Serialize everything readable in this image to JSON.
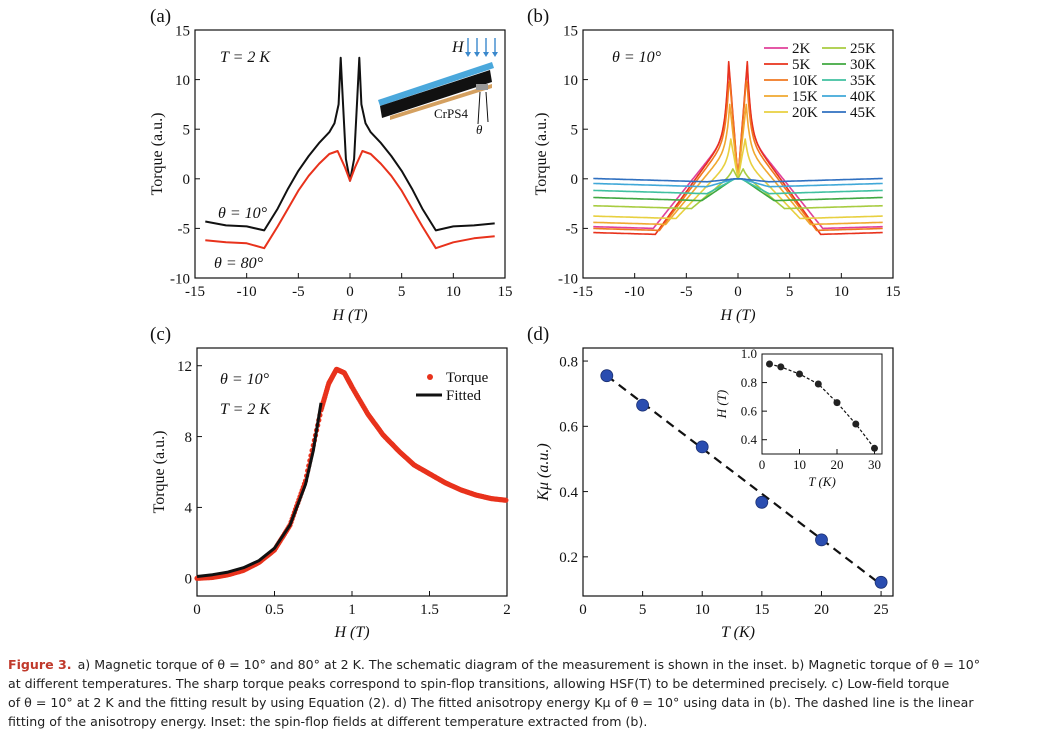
{
  "chart_data": [
    {
      "panel": "(a)",
      "type": "line",
      "xlabel": "H (T)",
      "ylabel": "Torque (a.u.)",
      "xlim": [
        -15,
        15
      ],
      "ylim": [
        -10,
        15
      ],
      "xticks": [
        "-15",
        "-10",
        "-5",
        "0",
        "5",
        "10",
        "15"
      ],
      "yticks": [
        "-10",
        "-5",
        "0",
        "5",
        "10",
        "15"
      ],
      "annotations": [
        "T = 2 K",
        "θ = 10°",
        "θ = 80°"
      ],
      "inset_labels": {
        "field": "H",
        "sample": "CrPS4",
        "angle": "θ"
      },
      "series": [
        {
          "name": "θ = 10°",
          "color": "#111111",
          "x": [
            -14,
            -12,
            -10,
            -8.3,
            -7,
            -6,
            -5,
            -4,
            -3,
            -2,
            -1.5,
            -1.1,
            -0.9,
            -0.7,
            -0.4,
            0,
            0.4,
            0.7,
            0.9,
            1.1,
            1.5,
            2,
            3,
            4,
            5,
            6,
            7,
            8.3,
            10,
            12,
            14
          ],
          "y": [
            -4.3,
            -4.7,
            -4.8,
            -5.2,
            -3.0,
            -1.0,
            0.8,
            2.3,
            3.6,
            4.7,
            5.6,
            7.5,
            12.2,
            8.0,
            2.0,
            -0.2,
            2.0,
            8.0,
            12.2,
            7.5,
            5.6,
            4.7,
            3.6,
            2.3,
            0.8,
            -1.0,
            -3.0,
            -5.2,
            -4.8,
            -4.7,
            -4.5
          ]
        },
        {
          "name": "θ = 80°",
          "color": "#e8321c",
          "x": [
            -14,
            -12,
            -10,
            -8.3,
            -7,
            -6,
            -5,
            -4,
            -3,
            -2,
            -1.2,
            -0.5,
            0,
            0.5,
            1.2,
            2,
            3,
            4,
            5,
            6,
            7,
            8.3,
            10,
            12,
            14
          ],
          "y": [
            -6.2,
            -6.4,
            -6.5,
            -7.0,
            -4.8,
            -3.0,
            -1.2,
            0.3,
            1.5,
            2.5,
            2.8,
            1.2,
            -0.2,
            1.2,
            2.8,
            2.5,
            1.5,
            0.3,
            -1.2,
            -3.0,
            -4.8,
            -7.0,
            -6.4,
            -6.0,
            -5.8
          ]
        }
      ]
    },
    {
      "panel": "(b)",
      "type": "line",
      "xlabel": "H (T)",
      "ylabel": "Torque (a.u.)",
      "xlim": [
        -15,
        15
      ],
      "ylim": [
        -10,
        15
      ],
      "xticks": [
        "-15",
        "-10",
        "-5",
        "0",
        "5",
        "10",
        "15"
      ],
      "yticks": [
        "-10",
        "-5",
        "0",
        "5",
        "10",
        "15"
      ],
      "annotations": [
        "θ = 10°"
      ],
      "legend_position": "top-right",
      "series": [
        {
          "name": "2K",
          "color": "#e0409a",
          "peak": 11.5,
          "peak_h": 0.9,
          "shoulder": 4.5,
          "sat": -5.0,
          "hsf": 8.2
        },
        {
          "name": "5K",
          "color": "#e8321c",
          "peak": 11.8,
          "peak_h": 0.9,
          "shoulder": 4.6,
          "sat": -5.6,
          "hsf": 8.0
        },
        {
          "name": "10K",
          "color": "#f07820",
          "peak": 10.5,
          "peak_h": 0.85,
          "shoulder": 4.2,
          "sat": -5.2,
          "hsf": 7.6
        },
        {
          "name": "15K",
          "color": "#f0a830",
          "peak": 7.5,
          "peak_h": 0.8,
          "shoulder": 3.2,
          "sat": -4.6,
          "hsf": 7.0
        },
        {
          "name": "20K",
          "color": "#e8d040",
          "peak": 4.0,
          "peak_h": 0.7,
          "shoulder": 1.8,
          "sat": -4.0,
          "hsf": 6.0
        },
        {
          "name": "25K",
          "color": "#a8cc40",
          "peak": 1.0,
          "peak_h": 0.5,
          "shoulder": 0.5,
          "sat": -3.0,
          "hsf": 4.5
        },
        {
          "name": "30K",
          "color": "#40a840",
          "peak": 0.0,
          "peak_h": 0.4,
          "shoulder": 0.0,
          "sat": -2.2,
          "hsf": 3.5
        },
        {
          "name": "35K",
          "color": "#40c0a0",
          "peak": 0.0,
          "peak_h": 0.3,
          "shoulder": 0.0,
          "sat": -1.5,
          "hsf": 3.0
        },
        {
          "name": "40K",
          "color": "#40a8d8",
          "peak": 0.0,
          "peak_h": 0.3,
          "shoulder": 0.0,
          "sat": -0.8,
          "hsf": 3.0
        },
        {
          "name": "45K",
          "color": "#3070c0",
          "peak": 0.0,
          "peak_h": 0.3,
          "shoulder": 0.0,
          "sat": -0.3,
          "hsf": 3.0
        }
      ]
    },
    {
      "panel": "(c)",
      "type": "scatter",
      "xlabel": "H (T)",
      "ylabel": "Torque (a.u.)",
      "xlim": [
        0,
        2
      ],
      "ylim": [
        -1,
        13
      ],
      "xticks": [
        "0",
        "0.5",
        "1",
        "1.5",
        "2"
      ],
      "yticks": [
        "0",
        "4",
        "8",
        "12"
      ],
      "annotations": [
        "θ = 10°",
        "T = 2 K"
      ],
      "legend_position": "top-right",
      "series": [
        {
          "name": "Torque",
          "color": "#e8321c",
          "x": [
            0,
            0.1,
            0.2,
            0.3,
            0.4,
            0.5,
            0.6,
            0.7,
            0.8,
            0.85,
            0.9,
            0.95,
            1.0,
            1.1,
            1.2,
            1.3,
            1.4,
            1.5,
            1.6,
            1.7,
            1.8,
            1.9,
            2.0
          ],
          "y": [
            0.0,
            0.05,
            0.2,
            0.45,
            0.9,
            1.6,
            3.0,
            5.5,
            9.5,
            11.0,
            11.8,
            11.6,
            10.8,
            9.3,
            8.1,
            7.2,
            6.4,
            5.9,
            5.4,
            5.0,
            4.7,
            4.5,
            4.4
          ]
        },
        {
          "name": "Fitted",
          "color": "#111111",
          "x": [
            0,
            0.1,
            0.2,
            0.3,
            0.4,
            0.5,
            0.6,
            0.7,
            0.75,
            0.8
          ],
          "y": [
            0.1,
            0.2,
            0.35,
            0.6,
            1.0,
            1.7,
            3.0,
            5.3,
            7.2,
            9.9
          ]
        }
      ]
    },
    {
      "panel": "(d)",
      "type": "scatter",
      "xlabel": "T (K)",
      "ylabel": "Kμ (a.u.)",
      "xlim": [
        0,
        26
      ],
      "ylim": [
        0.08,
        0.84
      ],
      "xticks": [
        "0",
        "5",
        "10",
        "15",
        "20",
        "25"
      ],
      "yticks": [
        "0.2",
        "0.4",
        "0.6",
        "0.8"
      ],
      "series": [
        {
          "name": "Kμ",
          "color": "#2a4db0",
          "x": [
            2,
            5,
            10,
            15,
            20,
            25
          ],
          "y": [
            0.755,
            0.665,
            0.537,
            0.367,
            0.252,
            0.122
          ]
        },
        {
          "name": "Linear fit",
          "color": "#111111",
          "x": [
            2,
            25
          ],
          "y": [
            0.755,
            0.115
          ]
        }
      ],
      "inset": {
        "type": "line",
        "xlabel": "T (K)",
        "ylabel": "H (T)",
        "xlim": [
          0,
          32
        ],
        "ylim": [
          0.3,
          1.0
        ],
        "xticks": [
          "0",
          "10",
          "20",
          "30"
        ],
        "yticks": [
          "0.4",
          "0.6",
          "0.8",
          "1.0"
        ],
        "series": [
          {
            "name": "HSF",
            "color": "#111111",
            "x": [
              2,
              5,
              10,
              15,
              20,
              25,
              30
            ],
            "y": [
              0.93,
              0.91,
              0.86,
              0.79,
              0.66,
              0.51,
              0.34
            ]
          }
        ]
      }
    }
  ],
  "caption": {
    "label": "Figure 3.",
    "lines": [
      "a) Magnetic torque of θ = 10° and 80° at 2 K. The schematic diagram of the measurement is shown in the inset. b) Magnetic torque of θ = 10°",
      "at different temperatures. The sharp torque peaks correspond to spin-flop transitions, allowing HSF(T) to be determined precisely. c) Low-field torque",
      "of θ = 10° at 2 K and the fitting result by using Equation (2). d) The fitted anisotropy energy Kμ of θ = 10° using data in (b). The dashed line is the linear",
      "fitting of the anisotropy energy. Inset: the spin-flop fields at different temperature extracted from (b)."
    ]
  }
}
